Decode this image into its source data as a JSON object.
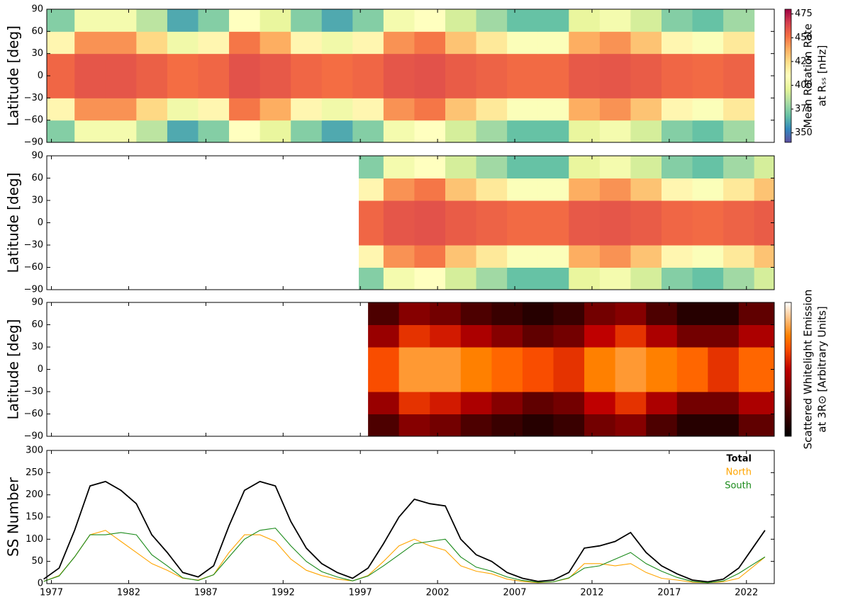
{
  "chart_data": [
    {
      "type": "heatmap",
      "ylabel": "Latitude [deg]",
      "colormap": "Spectral_r",
      "colorbar_label": [
        "Mean Rotation Rate",
        "at Rₛₛ [nHz]"
      ],
      "clim": [
        340,
        480
      ],
      "cticks": [
        350,
        375,
        400,
        425,
        450,
        475
      ],
      "xlim": [
        1976.7,
        2023.8
      ],
      "xticks": [
        1977,
        1982,
        1987,
        1992,
        1997,
        2002,
        2007,
        2012,
        2017,
        2022
      ],
      "ylim": [
        -90,
        90
      ],
      "yticks": [
        {
          "value": -90,
          "label": "−90"
        },
        {
          "value": -60,
          "label": "−60"
        },
        {
          "value": -30,
          "label": "−30"
        },
        0,
        30,
        60,
        90
      ],
      "xbins": [
        1976.7,
        1978.5,
        1980.5,
        1982.5,
        1984.5,
        1986.5,
        1988.5,
        1990.5,
        1992.5,
        1994.5,
        1996.5,
        1998.5,
        2000.5,
        2002.5,
        2004.5,
        2006.5,
        2008.5,
        2010.5,
        2012.5,
        2014.5,
        2016.5,
        2018.5,
        2020.5,
        2022.5
      ],
      "ybins": [
        -90,
        -60,
        -30,
        0,
        30,
        60,
        90
      ],
      "values": [
        [
          374,
          404,
          404,
          386,
          362,
          374,
          410,
          398,
          374,
          362,
          374,
          404,
          410,
          392,
          380,
          368,
          368,
          398,
          404,
          392,
          374,
          368,
          380
        ],
        [
          414,
          444,
          444,
          426,
          402,
          414,
          450,
          438,
          414,
          402,
          414,
          444,
          450,
          432,
          420,
          408,
          408,
          438,
          444,
          432,
          414,
          408,
          420
        ],
        [
          454,
          459,
          459,
          456,
          452,
          454,
          460,
          458,
          454,
          452,
          454,
          459,
          460,
          457,
          455,
          453,
          453,
          458,
          459,
          457,
          454,
          453,
          455
        ],
        [
          454,
          459,
          459,
          456,
          452,
          454,
          460,
          458,
          454,
          452,
          454,
          459,
          460,
          457,
          455,
          453,
          453,
          458,
          459,
          457,
          454,
          453,
          455
        ],
        [
          414,
          444,
          444,
          426,
          402,
          414,
          450,
          438,
          414,
          402,
          414,
          444,
          450,
          432,
          420,
          408,
          408,
          438,
          444,
          432,
          414,
          408,
          420
        ],
        [
          374,
          404,
          404,
          386,
          362,
          374,
          410,
          398,
          374,
          362,
          374,
          404,
          410,
          392,
          380,
          368,
          368,
          398,
          404,
          392,
          374,
          368,
          380
        ]
      ]
    },
    {
      "type": "heatmap",
      "ylabel": "Latitude [deg]",
      "colormap": "Spectral_r",
      "clim": [
        340,
        480
      ],
      "xlim": [
        1976.7,
        2023.8
      ],
      "xticks": [
        1977,
        1982,
        1987,
        1992,
        1997,
        2002,
        2007,
        2012,
        2017,
        2022
      ],
      "ylim": [
        -90,
        90
      ],
      "yticks": [
        {
          "value": -90,
          "label": "−90"
        },
        {
          "value": -60,
          "label": "−60"
        },
        {
          "value": -30,
          "label": "−30"
        },
        0,
        30,
        60,
        90
      ],
      "xbins": [
        1996.9,
        1998.5,
        2000.5,
        2002.5,
        2004.5,
        2006.5,
        2008.5,
        2010.5,
        2012.5,
        2014.5,
        2016.5,
        2018.5,
        2020.5,
        2022.5,
        2023.8
      ],
      "ybins": [
        -90,
        -60,
        -30,
        0,
        30,
        60,
        90
      ],
      "values": [
        [
          374,
          404,
          410,
          392,
          380,
          368,
          368,
          398,
          404,
          392,
          374,
          368,
          380,
          392
        ],
        [
          414,
          444,
          450,
          432,
          420,
          408,
          408,
          438,
          444,
          432,
          414,
          408,
          420,
          432
        ],
        [
          454,
          459,
          460,
          457,
          455,
          453,
          453,
          458,
          459,
          457,
          454,
          453,
          455,
          457
        ],
        [
          454,
          459,
          460,
          457,
          455,
          453,
          453,
          458,
          459,
          457,
          454,
          453,
          455,
          457
        ],
        [
          414,
          444,
          450,
          432,
          420,
          408,
          408,
          438,
          444,
          432,
          414,
          408,
          420,
          432
        ],
        [
          374,
          404,
          410,
          392,
          380,
          368,
          368,
          398,
          404,
          392,
          374,
          368,
          380,
          392
        ]
      ]
    },
    {
      "type": "heatmap",
      "ylabel": "Latitude [deg]",
      "colormap": "gist_heat",
      "colorbar_label": [
        "Scattered Whitelight Emission",
        "at 3R⊙ [Arbitrary Units]"
      ],
      "clim": [
        0,
        1
      ],
      "xlim": [
        1976.7,
        2023.8
      ],
      "xticks": [
        1977,
        1982,
        1987,
        1992,
        1997,
        2002,
        2007,
        2012,
        2017,
        2022
      ],
      "ylim": [
        -90,
        90
      ],
      "yticks": [
        {
          "value": -90,
          "label": "−90"
        },
        {
          "value": -60,
          "label": "−60"
        },
        {
          "value": -30,
          "label": "−30"
        },
        0,
        30,
        60,
        90
      ],
      "xbins": [
        1997.5,
        1999.5,
        2001.5,
        2003.5,
        2005.5,
        2007.5,
        2009.5,
        2011.5,
        2013.5,
        2015.5,
        2017.5,
        2019.5,
        2021.5,
        2023.8
      ],
      "ybins": [
        -90,
        -60,
        -30,
        0,
        30,
        60,
        90
      ],
      "values": [
        [
          0.2,
          0.35,
          0.3,
          0.2,
          0.15,
          0.1,
          0.15,
          0.3,
          0.35,
          0.2,
          0.1,
          0.1,
          0.25
        ],
        [
          0.4,
          0.6,
          0.55,
          0.45,
          0.35,
          0.25,
          0.3,
          0.5,
          0.6,
          0.45,
          0.3,
          0.3,
          0.45
        ],
        [
          0.65,
          0.8,
          0.8,
          0.75,
          0.7,
          0.65,
          0.6,
          0.75,
          0.8,
          0.75,
          0.7,
          0.6,
          0.7
        ],
        [
          0.65,
          0.8,
          0.8,
          0.75,
          0.7,
          0.65,
          0.6,
          0.75,
          0.8,
          0.75,
          0.7,
          0.6,
          0.7
        ],
        [
          0.4,
          0.6,
          0.55,
          0.45,
          0.35,
          0.25,
          0.3,
          0.5,
          0.6,
          0.45,
          0.3,
          0.3,
          0.45
        ],
        [
          0.2,
          0.35,
          0.3,
          0.2,
          0.15,
          0.1,
          0.15,
          0.3,
          0.35,
          0.2,
          0.1,
          0.1,
          0.25
        ]
      ]
    },
    {
      "type": "line",
      "ylabel": "SS Number",
      "legend": "upper right",
      "xlim": [
        1976.7,
        2023.8
      ],
      "xticks": [
        1977,
        1982,
        1987,
        1992,
        1997,
        2002,
        2007,
        2012,
        2017,
        2022
      ],
      "ylim": [
        0,
        300
      ],
      "yticks": [
        0,
        50,
        100,
        150,
        200,
        250,
        300
      ],
      "x": [
        1976.5,
        1977.5,
        1978.5,
        1979.5,
        1980.5,
        1981.5,
        1982.5,
        1983.5,
        1984.5,
        1985.5,
        1986.5,
        1987.5,
        1988.5,
        1989.5,
        1990.5,
        1991.5,
        1992.5,
        1993.5,
        1994.5,
        1995.5,
        1996.5,
        1997.5,
        1998.5,
        1999.5,
        2000.5,
        2001.5,
        2002.5,
        2003.5,
        2004.5,
        2005.5,
        2006.5,
        2007.5,
        2008.5,
        2009.5,
        2010.5,
        2011.5,
        2012.5,
        2013.5,
        2014.5,
        2015.5,
        2016.5,
        2017.5,
        2018.5,
        2019.5,
        2020.5,
        2021.5,
        2022.5,
        2023.2
      ],
      "series": [
        {
          "name": "Total",
          "color": "#000000",
          "values": [
            10,
            35,
            120,
            220,
            230,
            210,
            180,
            110,
            70,
            25,
            15,
            40,
            130,
            210,
            230,
            220,
            140,
            80,
            45,
            25,
            12,
            35,
            90,
            150,
            190,
            180,
            175,
            100,
            65,
            50,
            25,
            12,
            5,
            8,
            25,
            80,
            85,
            95,
            115,
            70,
            40,
            22,
            8,
            4,
            10,
            35,
            85,
            120
          ]
        },
        {
          "name": "North",
          "color": "#ffa500",
          "values": [
            5,
            18,
            60,
            110,
            120,
            95,
            70,
            45,
            30,
            12,
            8,
            20,
            70,
            110,
            110,
            95,
            55,
            30,
            18,
            10,
            6,
            18,
            50,
            85,
            100,
            85,
            75,
            40,
            28,
            22,
            10,
            5,
            2,
            4,
            12,
            45,
            45,
            40,
            45,
            25,
            12,
            8,
            3,
            2,
            4,
            12,
            40,
            60
          ]
        },
        {
          "name": "South",
          "color": "#1a8a1a",
          "values": [
            5,
            17,
            60,
            110,
            110,
            115,
            110,
            65,
            40,
            13,
            7,
            20,
            60,
            100,
            120,
            125,
            85,
            50,
            27,
            15,
            6,
            17,
            40,
            65,
            90,
            95,
            100,
            60,
            37,
            28,
            15,
            7,
            3,
            4,
            13,
            35,
            40,
            55,
            70,
            45,
            28,
            14,
            5,
            2,
            6,
            23,
            45,
            60
          ]
        }
      ]
    }
  ]
}
